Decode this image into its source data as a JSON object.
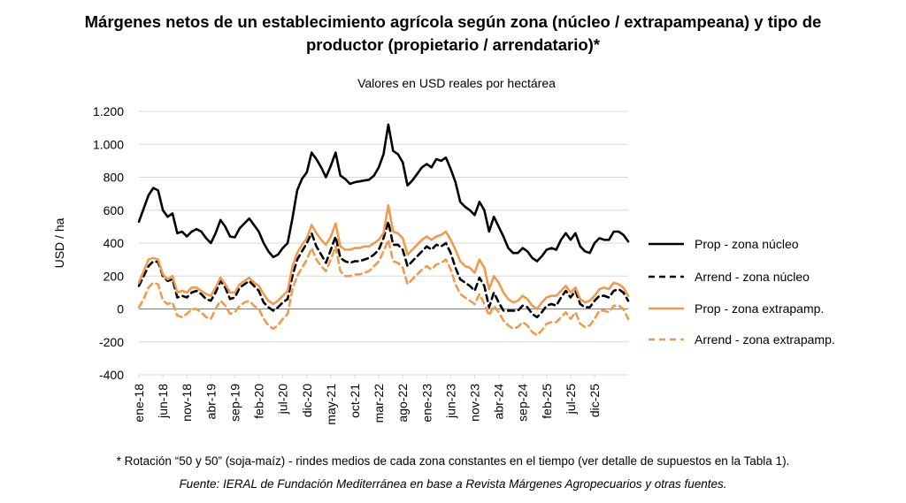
{
  "title_line1": "Márgenes netos de un establecimiento agrícola según zona (núcleo / extrapampeana) y tipo de",
  "title_line2": "productor (propietario / arrendatario)*",
  "subtitle": "Valores en USD reales por hectárea",
  "footnote": "* Rotación “50 y 50” (soja-maíz) - rindes medios de cada zona constantes en el tiempo (ver detalle de supuestos en la Tabla 1).",
  "source": "Fuente: IERAL de Fundación Mediterránea en base a Revista Márgenes Agropecuarios y otras fuentes.",
  "colors": {
    "black": "#000000",
    "orange": "#f09a4e",
    "grid": "#d9d9d9",
    "axis": "#808080"
  },
  "chart_data": {
    "type": "line",
    "ylabel": "USD / ha",
    "ylim": [
      -400,
      1200
    ],
    "yticks": [
      -400,
      -200,
      0,
      200,
      400,
      600,
      800,
      1000,
      1200
    ],
    "ytick_labels": [
      "-400",
      "-200",
      "0",
      "200",
      "400",
      "600",
      "800",
      "1.000",
      "1.200"
    ],
    "grid": true,
    "legend_position": "right",
    "x_start": "ene-18",
    "xtick_labels": [
      "ene-18",
      "jun-18",
      "nov-18",
      "abr-19",
      "sep-19",
      "feb-20",
      "jul-20",
      "dic-20",
      "may-21",
      "oct-21",
      "mar-22",
      "ago-22",
      "ene-23",
      "jun-23",
      "nov-23",
      "abr-24",
      "sep-24",
      "feb-25",
      "jul-25",
      "dic-25"
    ],
    "series": [
      {
        "name": "Prop - zona núcleo",
        "color": "#000000",
        "dash": "solid",
        "values": [
          530,
          610,
          690,
          735,
          720,
          600,
          560,
          580,
          460,
          470,
          440,
          470,
          485,
          470,
          430,
          400,
          460,
          540,
          500,
          440,
          435,
          490,
          520,
          550,
          510,
          470,
          400,
          350,
          315,
          330,
          370,
          400,
          550,
          720,
          790,
          830,
          950,
          910,
          860,
          800,
          870,
          950,
          810,
          790,
          760,
          770,
          775,
          780,
          785,
          810,
          860,
          940,
          1120,
          960,
          940,
          890,
          750,
          780,
          820,
          860,
          880,
          860,
          910,
          900,
          920,
          850,
          770,
          650,
          620,
          600,
          570,
          650,
          600,
          470,
          560,
          500,
          440,
          370,
          340,
          340,
          370,
          350,
          310,
          290,
          320,
          360,
          370,
          360,
          420,
          460,
          420,
          460,
          380,
          350,
          340,
          400,
          430,
          420,
          420,
          470,
          470,
          450,
          410
        ]
      },
      {
        "name": "Arrend - zona núcleo",
        "color": "#000000",
        "dash": "dashed",
        "values": [
          140,
          200,
          260,
          290,
          285,
          200,
          170,
          180,
          70,
          80,
          70,
          100,
          110,
          90,
          60,
          50,
          100,
          170,
          130,
          60,
          70,
          130,
          150,
          170,
          140,
          110,
          40,
          10,
          -10,
          10,
          40,
          60,
          200,
          300,
          350,
          400,
          460,
          380,
          330,
          280,
          360,
          440,
          310,
          290,
          280,
          290,
          290,
          300,
          310,
          330,
          360,
          430,
          530,
          390,
          390,
          360,
          260,
          290,
          320,
          350,
          380,
          360,
          390,
          380,
          400,
          340,
          250,
          180,
          160,
          140,
          110,
          190,
          140,
          10,
          100,
          40,
          -10,
          -10,
          -10,
          -10,
          20,
          10,
          -30,
          -50,
          -20,
          20,
          30,
          20,
          70,
          110,
          70,
          110,
          30,
          10,
          10,
          50,
          80,
          80,
          70,
          110,
          120,
          100,
          50
        ]
      },
      {
        "name": "Prop - zona extrapamp.",
        "color": "#f09a4e",
        "dash": "solid",
        "values": [
          160,
          230,
          300,
          310,
          300,
          210,
          180,
          200,
          100,
          110,
          100,
          130,
          130,
          110,
          90,
          80,
          130,
          190,
          150,
          100,
          100,
          150,
          170,
          190,
          160,
          140,
          90,
          50,
          30,
          50,
          80,
          110,
          260,
          340,
          390,
          430,
          510,
          460,
          420,
          390,
          440,
          520,
          380,
          360,
          360,
          370,
          370,
          380,
          380,
          400,
          420,
          460,
          630,
          470,
          460,
          430,
          330,
          360,
          390,
          420,
          440,
          420,
          440,
          450,
          470,
          420,
          360,
          290,
          260,
          250,
          220,
          300,
          250,
          120,
          200,
          160,
          100,
          60,
          40,
          50,
          80,
          60,
          20,
          0,
          40,
          70,
          80,
          80,
          110,
          140,
          100,
          130,
          60,
          40,
          50,
          80,
          120,
          130,
          120,
          160,
          150,
          130,
          80
        ]
      },
      {
        "name": "Arrend - zona extrapamp.",
        "color": "#f09a4e",
        "dash": "dashed",
        "values": [
          10,
          60,
          130,
          160,
          150,
          50,
          30,
          40,
          -40,
          -50,
          -30,
          0,
          0,
          -20,
          -50,
          -60,
          0,
          50,
          20,
          -30,
          -20,
          20,
          40,
          50,
          20,
          0,
          -60,
          -100,
          -120,
          -100,
          -60,
          -30,
          120,
          200,
          250,
          300,
          370,
          300,
          260,
          230,
          300,
          380,
          230,
          200,
          200,
          210,
          210,
          220,
          230,
          260,
          290,
          350,
          420,
          290,
          280,
          250,
          150,
          180,
          210,
          240,
          260,
          240,
          270,
          280,
          300,
          240,
          150,
          90,
          70,
          50,
          30,
          90,
          30,
          -40,
          20,
          -20,
          -70,
          -100,
          -120,
          -110,
          -80,
          -100,
          -140,
          -160,
          -130,
          -90,
          -80,
          -80,
          -50,
          -20,
          -60,
          -20,
          -90,
          -110,
          -100,
          -60,
          -10,
          -10,
          -20,
          20,
          20,
          0,
          -60
        ]
      }
    ]
  }
}
